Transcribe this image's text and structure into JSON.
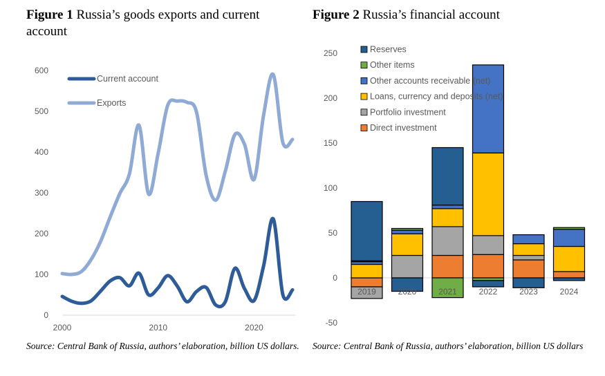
{
  "figure1": {
    "number": "Figure 1",
    "title": "Russia’s goods exports and current account",
    "source": "Source: Central Bank of Russia, authors’ elaboration, billion US dollars."
  },
  "figure2": {
    "number": "Figure 2",
    "title": "Russia’s financial account",
    "source": "Source: Central Bank of Russia, authors’ elaboration, billion US dollars"
  },
  "chart_data": [
    {
      "type": "line",
      "title": "Russia’s goods exports and current account",
      "xlim": [
        2000,
        2024
      ],
      "ylim": [
        0,
        600
      ],
      "x_ticks": [
        2000,
        2010,
        2020
      ],
      "y_ticks": [
        0,
        100,
        200,
        300,
        400,
        500,
        600
      ],
      "legend_position": "top-left",
      "x": [
        2000,
        2001,
        2002,
        2003,
        2004,
        2005,
        2006,
        2007,
        2008,
        2009,
        2010,
        2011,
        2012,
        2013,
        2014,
        2015,
        2016,
        2017,
        2018,
        2019,
        2020,
        2021,
        2022,
        2023,
        2024
      ],
      "series": [
        {
          "name": "Current account",
          "color": "#2e5c99",
          "values": [
            46,
            34,
            29,
            35,
            59,
            84,
            92,
            72,
            103,
            50,
            67,
            97,
            71,
            33,
            58,
            68,
            25,
            33,
            115,
            65,
            36,
            122,
            236,
            50,
            62
          ]
        },
        {
          "name": "Exports",
          "color": "#8faad4",
          "values": [
            102,
            100,
            107,
            136,
            181,
            241,
            298,
            346,
            466,
            297,
            397,
            515,
            525,
            522,
            498,
            343,
            282,
            353,
            443,
            419,
            333,
            492,
            590,
            423,
            431
          ]
        }
      ]
    },
    {
      "type": "bar",
      "stacked": true,
      "title": "Russia’s financial account",
      "categories": [
        "2019",
        "2020",
        "2021",
        "2022",
        "2023",
        "2024"
      ],
      "ylim": [
        -50,
        250
      ],
      "y_ticks": [
        -50,
        0,
        50,
        100,
        150,
        200,
        250
      ],
      "legend_position": "top-left",
      "series": [
        {
          "name": "Direct investment",
          "color": "#ed7d31",
          "values": [
            -10,
            0,
            25,
            26,
            20,
            7
          ]
        },
        {
          "name": "Portfolio investment",
          "color": "#a5a5a5",
          "values": [
            -13,
            25,
            32,
            21,
            5,
            0
          ]
        },
        {
          "name": "Loans, currency and deposits (net)",
          "color": "#ffc000",
          "values": [
            15,
            24,
            20,
            92,
            13,
            28
          ]
        },
        {
          "name": "Other accounts receivable (net)",
          "color": "#4472c4",
          "values": [
            3,
            4,
            4,
            98,
            10,
            19
          ]
        },
        {
          "name": "Other items",
          "color": "#70ad47",
          "values": [
            1,
            2,
            -22,
            -3,
            0,
            2
          ]
        },
        {
          "name": "Reserves",
          "color": "#255e91",
          "values": [
            66,
            -15,
            64,
            -7,
            -11,
            -3
          ]
        }
      ]
    }
  ]
}
